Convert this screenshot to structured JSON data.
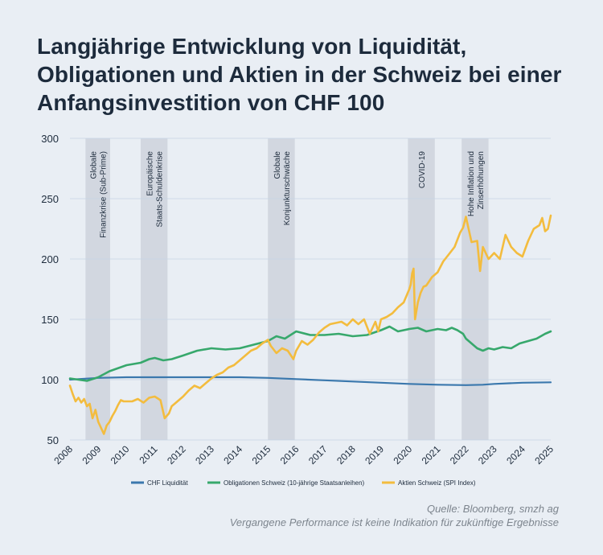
{
  "title_lines": [
    "Langjährige Entwicklung von Liquidität,",
    "Obligationen und Aktien in der Schweiz bei einer",
    "Anfangsinvestition von CHF 100"
  ],
  "source": [
    "Quelle: Bloomberg, smzh ag",
    "Vergangene Performance ist keine Indikation für zukünftige Ergebnisse"
  ],
  "colors": {
    "liquidity": "#3b78ad",
    "bonds": "#37a86c",
    "equities": "#f3bc3e",
    "band": "#d2d7e0",
    "grid": "#c4d4e6",
    "text": "#1d2b3c"
  },
  "chart_data": {
    "type": "line",
    "xlim": [
      2008,
      2025
    ],
    "ylim": [
      50,
      300
    ],
    "yticks": [
      50,
      100,
      150,
      200,
      250,
      300
    ],
    "xticks": [
      "2008",
      "2009",
      "2010",
      "2011",
      "2012",
      "2013",
      "2014",
      "2015",
      "2016",
      "2017",
      "2018",
      "2019",
      "2020",
      "2021",
      "2022",
      "2023",
      "2024",
      "2025"
    ],
    "crisis_bands": [
      {
        "start": 2008.55,
        "end": 2009.42,
        "label": [
          "Globale",
          "Finanzkrise (Sub-Prime)"
        ]
      },
      {
        "start": 2010.5,
        "end": 2011.45,
        "label": [
          "Europäische",
          "Staats-Schuldenkrise"
        ]
      },
      {
        "start": 2015.0,
        "end": 2015.95,
        "label": [
          "Globale",
          "Konjunkturschwäche"
        ]
      },
      {
        "start": 2019.95,
        "end": 2020.9,
        "label": [
          "COVID-19"
        ]
      },
      {
        "start": 2021.85,
        "end": 2022.8,
        "label": [
          "Hohe Inflation und",
          "Zinserhöhungen"
        ]
      }
    ],
    "series": [
      {
        "name": "CHF Liquidität",
        "key": "liquidity",
        "x": [
          2008.0,
          2009.0,
          2010.0,
          2011.0,
          2012.0,
          2013.0,
          2014.0,
          2015.0,
          2016.0,
          2017.0,
          2018.0,
          2019.0,
          2020.0,
          2021.0,
          2022.0,
          2022.6,
          2023.0,
          2024.0,
          2025.0
        ],
        "y": [
          100,
          101.5,
          102,
          102,
          102,
          102,
          102,
          101.5,
          100.5,
          99.5,
          98.5,
          97.5,
          96.5,
          95.8,
          95.5,
          95.8,
          96.5,
          97.5,
          97.8
        ]
      },
      {
        "name": "Obligationen Schweiz (10-jährige Staatsanleihen)",
        "key": "bonds",
        "x": [
          2008.0,
          2008.3,
          2008.6,
          2009.0,
          2009.4,
          2010.0,
          2010.5,
          2010.8,
          2011.0,
          2011.3,
          2011.6,
          2012.0,
          2012.5,
          2013.0,
          2013.5,
          2014.0,
          2014.5,
          2015.0,
          2015.3,
          2015.6,
          2016.0,
          2016.5,
          2017.0,
          2017.5,
          2018.0,
          2018.5,
          2019.0,
          2019.3,
          2019.6,
          2020.0,
          2020.3,
          2020.6,
          2021.0,
          2021.3,
          2021.5,
          2021.7,
          2021.9,
          2022.0,
          2022.2,
          2022.4,
          2022.6,
          2022.8,
          2023.0,
          2023.3,
          2023.6,
          2023.9,
          2024.2,
          2024.5,
          2024.8,
          2025.0
        ],
        "y": [
          101,
          100,
          99,
          102,
          107,
          112,
          114,
          117,
          118,
          116,
          117,
          120,
          124,
          126,
          125,
          126,
          129,
          132,
          136,
          134,
          140,
          137,
          137,
          138,
          136,
          137,
          141,
          144,
          140,
          142,
          143,
          140,
          142,
          141,
          143,
          141,
          138,
          134,
          130,
          126,
          124,
          126,
          125,
          127,
          126,
          130,
          132,
          134,
          138,
          140
        ]
      },
      {
        "name": "Aktien Schweiz (SPI Index)",
        "key": "equities",
        "x": [
          2008.0,
          2008.1,
          2008.2,
          2008.3,
          2008.4,
          2008.5,
          2008.6,
          2008.7,
          2008.8,
          2008.9,
          2009.0,
          2009.1,
          2009.2,
          2009.3,
          2009.4,
          2009.5,
          2009.6,
          2009.7,
          2009.8,
          2009.9,
          2010.0,
          2010.2,
          2010.4,
          2010.6,
          2010.8,
          2011.0,
          2011.2,
          2011.35,
          2011.5,
          2011.6,
          2011.7,
          2011.8,
          2012.0,
          2012.2,
          2012.4,
          2012.6,
          2012.8,
          2013.0,
          2013.2,
          2013.4,
          2013.6,
          2013.8,
          2014.0,
          2014.2,
          2014.4,
          2014.6,
          2014.8,
          2015.0,
          2015.1,
          2015.3,
          2015.5,
          2015.7,
          2015.9,
          2016.0,
          2016.2,
          2016.4,
          2016.6,
          2016.8,
          2017.0,
          2017.2,
          2017.4,
          2017.6,
          2017.8,
          2018.0,
          2018.2,
          2018.4,
          2018.6,
          2018.8,
          2018.9,
          2019.0,
          2019.2,
          2019.4,
          2019.6,
          2019.8,
          2020.0,
          2020.05,
          2020.1,
          2020.15,
          2020.2,
          2020.3,
          2020.4,
          2020.5,
          2020.6,
          2020.8,
          2021.0,
          2021.2,
          2021.4,
          2021.6,
          2021.8,
          2021.9,
          2022.0,
          2022.2,
          2022.4,
          2022.5,
          2022.6,
          2022.8,
          2023.0,
          2023.2,
          2023.4,
          2023.6,
          2023.8,
          2024.0,
          2024.2,
          2024.4,
          2024.6,
          2024.7,
          2024.8,
          2024.9,
          2025.0
        ],
        "y": [
          95,
          88,
          82,
          85,
          81,
          84,
          78,
          80,
          68,
          75,
          65,
          60,
          55,
          62,
          65,
          70,
          74,
          79,
          83,
          82,
          82,
          82,
          84,
          81,
          85,
          86,
          83,
          68,
          72,
          78,
          80,
          82,
          86,
          91,
          95,
          93,
          97,
          101,
          104,
          106,
          110,
          112,
          116,
          120,
          124,
          126,
          130,
          133,
          128,
          122,
          126,
          124,
          117,
          124,
          132,
          129,
          133,
          139,
          143,
          146,
          147,
          148,
          145,
          150,
          146,
          150,
          138,
          148,
          140,
          150,
          152,
          155,
          160,
          164,
          175,
          179,
          188,
          192,
          150,
          164,
          172,
          177,
          178,
          185,
          189,
          198,
          204,
          210,
          222,
          226,
          235,
          214,
          215,
          190,
          210,
          200,
          205,
          200,
          220,
          210,
          205,
          202,
          215,
          225,
          228,
          234,
          223,
          225,
          236
        ]
      }
    ]
  }
}
